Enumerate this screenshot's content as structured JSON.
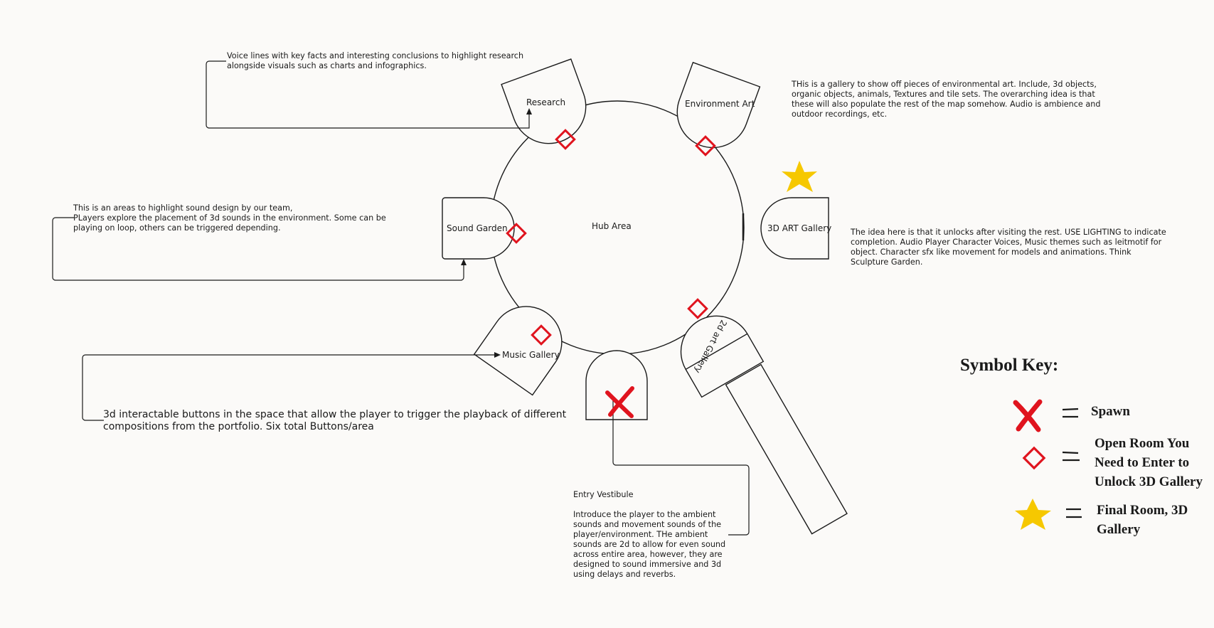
{
  "hub": {
    "label": "Hub Area"
  },
  "rooms": {
    "research": "Research",
    "environment_art": "Environment Art",
    "sound_garden": "Sound Garden",
    "gallery_3d": "3D ART Gallery",
    "music_gallery": "Music Gallery",
    "gallery_2d": "2d art Gallery"
  },
  "notes": {
    "research": "Voice lines with key facts and interesting conclusions to highlight research\nalongside visuals such as charts and infographics.",
    "environment_art": "THis is a gallery to show off pieces of environmental art.  Include, 3d objects,\norganic objects, animals, Textures and tile sets.  The overarching idea is that\nthese will also populate the rest of the map somehow.  Audio is ambience and\noutdoor recordings, etc.",
    "sound_garden": "This is an areas to highlight sound design by our team,\nPLayers explore the placement of 3d sounds in the environment.  Some can be\nplaying on loop, others can be triggered depending.",
    "gallery_3d": "The idea here is that it unlocks after visiting the rest.  USE LIGHTING to indicate\ncompletion. Audio Player Character Voices, Music themes such as leitmotif for\nobject.  Character sfx like movement for models and animations.  Think\nSculpture Garden.",
    "music_gallery": "3d interactable buttons in the space that allow the player to trigger the playback of different\ncompositions from the portfolio.  Six total Buttons/area",
    "entry_title": "Entry Vestibule",
    "entry_body": "Introduce the player to the ambient\nsounds and movement sounds of the\nplayer/environment. THe ambient\nsounds are 2d to allow for even sound\nacross entire area, however, they are\ndesigned to sound immersive and 3d\nusing delays and reverbs."
  },
  "key": {
    "title": "Symbol Key:",
    "spawn": "Spawn",
    "open_room": "Open Room You\nNeed to Enter to\nUnlock 3D Gallery",
    "final_room": "Final Room, 3D\nGallery"
  },
  "colors": {
    "marker_red": "#e0141e",
    "star_yellow": "#f6c800",
    "line": "#1a1a1a"
  }
}
